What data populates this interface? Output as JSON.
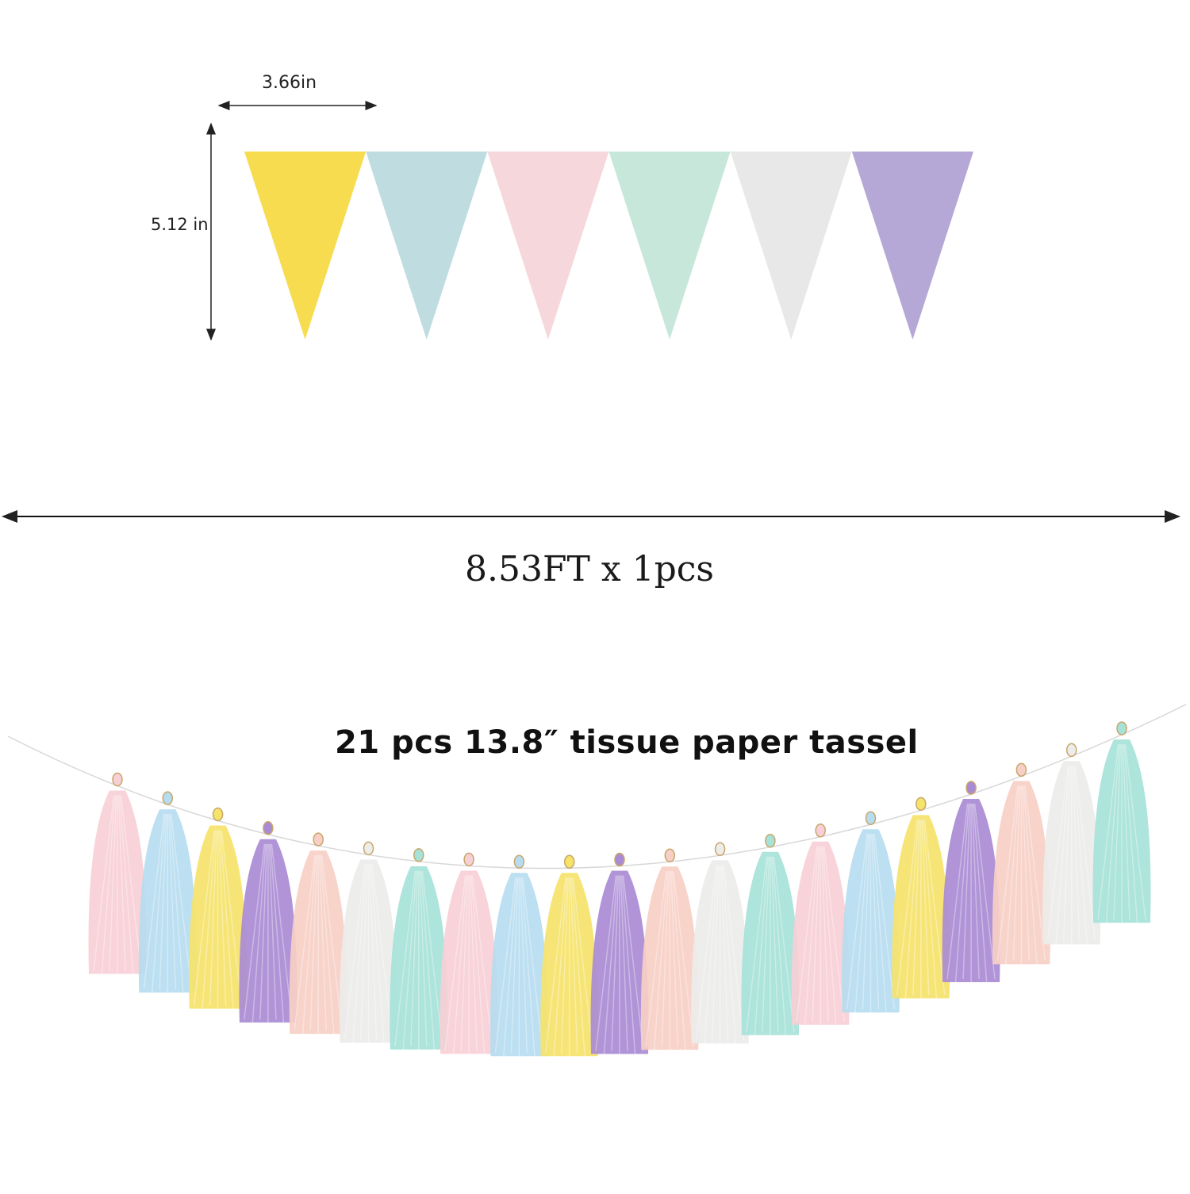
{
  "dimensions": {
    "pennant_width": "3.66in",
    "pennant_height": "5.12 in",
    "banner_length": "8.53FT x 1pcs"
  },
  "tassel_caption": "21 pcs 13.8″ tissue paper  tassel",
  "pennants": [
    {
      "color": "#f7dc4f"
    },
    {
      "color": "#bfdce1"
    },
    {
      "color": "#f6d8dc"
    },
    {
      "color": "#c6e7da"
    },
    {
      "color": "#e8e8e8"
    },
    {
      "color": "#b6a8d6"
    }
  ],
  "tassels": [
    {
      "color": "#f7cfd6"
    },
    {
      "color": "#b6dcf0"
    },
    {
      "color": "#f5e36a"
    },
    {
      "color": "#a98bd4"
    },
    {
      "color": "#f7cfc6"
    },
    {
      "color": "#ececea"
    },
    {
      "color": "#a6e2d8"
    },
    {
      "color": "#f7cfd6"
    },
    {
      "color": "#b6dcf0"
    },
    {
      "color": "#f5e36a"
    },
    {
      "color": "#a98bd4"
    },
    {
      "color": "#f7cfc6"
    },
    {
      "color": "#ececea"
    },
    {
      "color": "#a6e2d8"
    },
    {
      "color": "#f7cfd6"
    },
    {
      "color": "#b6dcf0"
    },
    {
      "color": "#f5e36a"
    },
    {
      "color": "#a98bd4"
    },
    {
      "color": "#f7cfc6"
    },
    {
      "color": "#ececea"
    },
    {
      "color": "#a6e2d8"
    }
  ]
}
